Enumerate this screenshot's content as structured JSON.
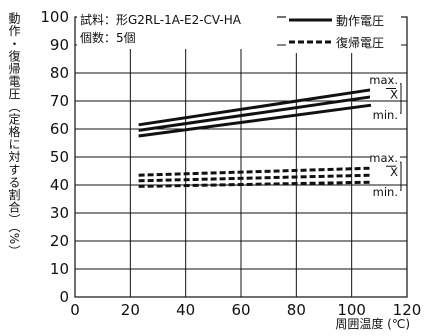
{
  "chart_data": {
    "type": "line",
    "xlabel": "周囲温度 (℃)",
    "ylabel": "動作・復帰電圧（定格に対する割合）（%）",
    "xlim": [
      0,
      120
    ],
    "ylim": [
      0,
      100
    ],
    "xticks": [
      "0",
      "20",
      "40",
      "60",
      "80",
      "100",
      "120"
    ],
    "yticks": [
      "0",
      "10",
      "20",
      "30",
      "40",
      "50",
      "60",
      "70",
      "80",
      "90",
      "100"
    ],
    "grid": true,
    "info": {
      "sample": "試料：形G2RL-1A-E2-CV-HA",
      "count": "個数：5個"
    },
    "legend": {
      "position": "top-right",
      "items": [
        {
          "label": "動作電圧",
          "style": "solid"
        },
        {
          "label": "復帰電圧",
          "style": "dashed"
        }
      ]
    },
    "series": [
      {
        "group": "動作電圧",
        "style": "solid",
        "annotation": "max.",
        "x": [
          23,
          107
        ],
        "y": [
          61.5,
          74
        ]
      },
      {
        "group": "動作電圧",
        "style": "solid",
        "annotation": "X",
        "x": [
          23,
          107
        ],
        "y": [
          59.5,
          71.5
        ]
      },
      {
        "group": "動作電圧",
        "style": "solid",
        "annotation": "min.",
        "x": [
          23,
          107
        ],
        "y": [
          57.5,
          68.5
        ]
      },
      {
        "group": "復帰電圧",
        "style": "dashed",
        "annotation": "max.",
        "x": [
          23,
          107
        ],
        "y": [
          43.5,
          46
        ]
      },
      {
        "group": "復帰電圧",
        "style": "dashed",
        "annotation": "X",
        "x": [
          23,
          107
        ],
        "y": [
          41.5,
          43.5
        ]
      },
      {
        "group": "復帰電圧",
        "style": "dashed",
        "annotation": "min.",
        "x": [
          23,
          107
        ],
        "y": [
          39.5,
          41
        ]
      }
    ]
  }
}
